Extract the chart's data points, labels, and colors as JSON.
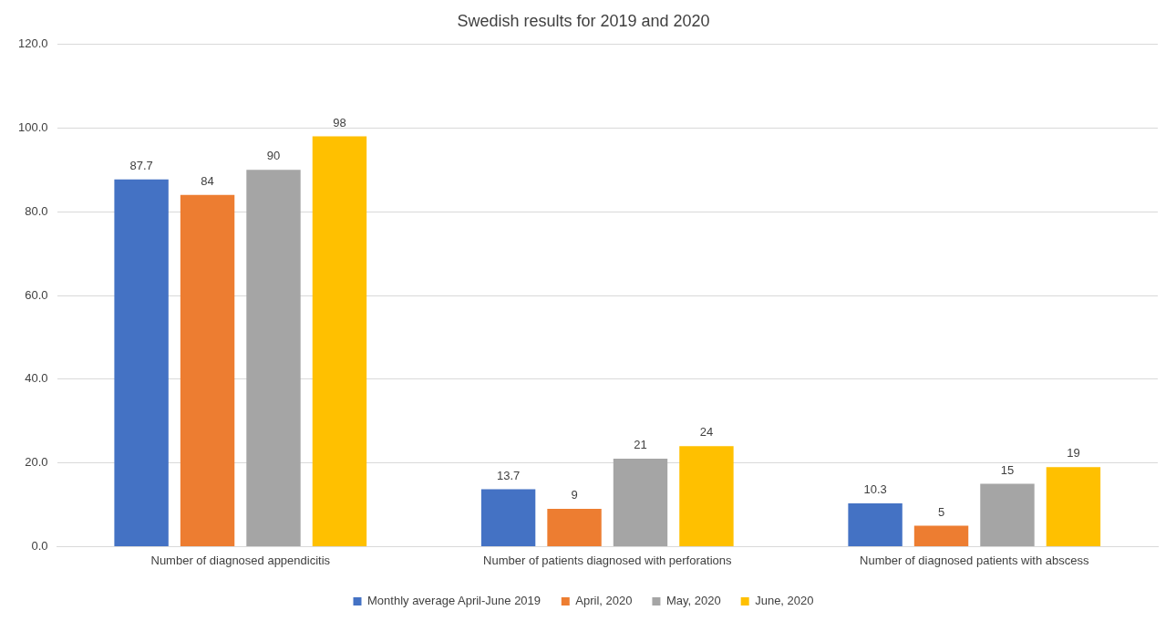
{
  "chart_data": {
    "type": "bar",
    "title": "Swedish results for 2019 and 2020",
    "categories": [
      "Number of diagnosed appendicitis",
      "Number of patients diagnosed with perforations",
      "Number of diagnosed patients with abscess"
    ],
    "series": [
      {
        "name": "Monthly average April-June 2019",
        "color": "#4472c4",
        "values": [
          87.7,
          13.7,
          10.3
        ]
      },
      {
        "name": "April, 2020",
        "color": "#ed7d31",
        "values": [
          84,
          9,
          5
        ]
      },
      {
        "name": "May, 2020",
        "color": "#a5a5a5",
        "values": [
          90,
          21,
          15
        ]
      },
      {
        "name": "June, 2020",
        "color": "#ffc000",
        "values": [
          98,
          24,
          19
        ]
      }
    ],
    "ylim": [
      0,
      120
    ],
    "yticks": [
      {
        "value": 0,
        "label": "0.0"
      },
      {
        "value": 20,
        "label": "20.0"
      },
      {
        "value": 40,
        "label": "40.0"
      },
      {
        "value": 60,
        "label": "60.0"
      },
      {
        "value": 80,
        "label": "80.0"
      },
      {
        "value": 100,
        "label": "100.0"
      },
      {
        "value": 120,
        "label": "120.0"
      }
    ],
    "grid": "y",
    "legend": "bottom",
    "data_labels": true
  }
}
